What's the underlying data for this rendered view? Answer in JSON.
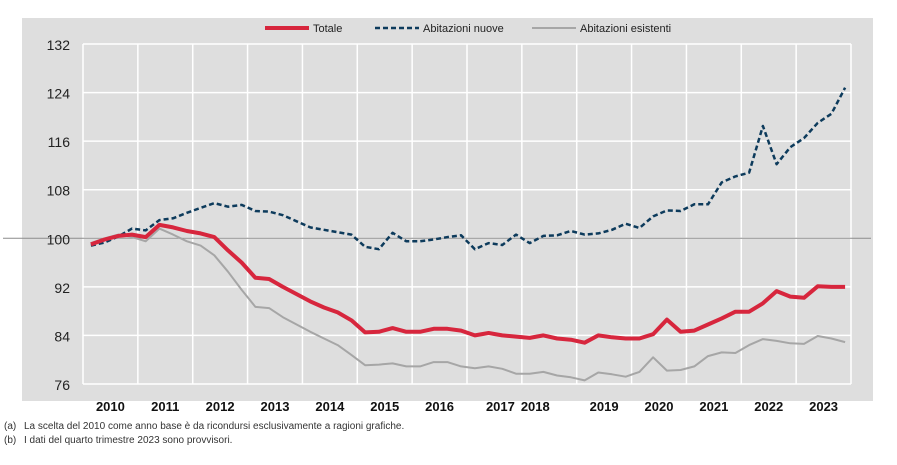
{
  "chart_data": {
    "type": "line",
    "xlabel": "",
    "ylabel": "",
    "ylim": [
      76,
      132
    ],
    "yticks": [
      76,
      84,
      92,
      100,
      108,
      116,
      124,
      132
    ],
    "reference_line": 100,
    "grid": true,
    "legend_position": "top-center",
    "x_tick_labels": [
      "2010",
      "2011",
      "2012",
      "2013",
      "2014",
      "2015",
      "2016",
      "2017",
      "2018",
      "2019",
      "2020",
      "2021",
      "2022",
      "2023"
    ],
    "frequency": "quarterly",
    "series": [
      {
        "name": "Totale",
        "color": "#d7263d",
        "style": "solid-thick",
        "values": [
          99,
          99.8,
          100.4,
          100.6,
          100.2,
          102.2,
          101.8,
          101.2,
          100.8,
          100.2,
          98,
          96,
          93.5,
          93.3,
          92,
          90.8,
          89.6,
          88.6,
          87.8,
          86.5,
          84.5,
          84.6,
          85.2,
          84.6,
          84.6,
          85.1,
          85.1,
          84.8,
          84,
          84.4,
          84,
          83.8,
          83.6,
          84,
          83.5,
          83.3,
          82.8,
          84,
          83.7,
          83.5,
          83.5,
          84.2,
          86.6,
          84.6,
          84.8,
          85.8,
          86.8,
          87.9,
          87.9,
          89.3,
          91.3,
          90.4,
          90.2,
          92.1,
          92.0,
          92.0
        ]
      },
      {
        "name": "Abitazioni nuove",
        "color": "#0d3b5c",
        "style": "dashed",
        "values": [
          98.8,
          99.3,
          100.3,
          101.6,
          101.3,
          103,
          103.3,
          104.2,
          105,
          105.8,
          105.2,
          105.5,
          104.5,
          104.4,
          103.8,
          102.8,
          101.8,
          101.4,
          101,
          100.6,
          98.6,
          98.2,
          100.9,
          99.5,
          99.5,
          99.8,
          100.2,
          100.5,
          98.2,
          99.2,
          98.9,
          100.6,
          99.2,
          100.4,
          100.5,
          101.2,
          100.6,
          100.8,
          101.4,
          102.4,
          101.7,
          103.6,
          104.6,
          104.5,
          105.6,
          105.6,
          109.2,
          110.2,
          110.8,
          118.5,
          112.2,
          115,
          116.5,
          119,
          120.5,
          124.8
        ]
      },
      {
        "name": "Abitazioni esistenti",
        "color": "#a6a6a6",
        "style": "solid",
        "values": [
          99.2,
          100,
          100.6,
          100.2,
          99.5,
          101.6,
          100.6,
          99.5,
          98.8,
          97.2,
          94.5,
          91.5,
          88.7,
          88.5,
          87,
          85.8,
          84.6,
          83.5,
          82.4,
          80.8,
          79.1,
          79.2,
          79.4,
          78.9,
          78.9,
          79.6,
          79.6,
          78.9,
          78.6,
          78.9,
          78.5,
          77.7,
          77.7,
          78,
          77.4,
          77.1,
          76.6,
          77.9,
          77.6,
          77.2,
          78,
          80.4,
          78.2,
          78.3,
          78.9,
          80.6,
          81.2,
          81.1,
          82.4,
          83.4,
          83.1,
          82.7,
          82.6,
          83.9,
          83.5,
          82.9
        ]
      }
    ]
  },
  "footnotes": [
    {
      "key": "(a)",
      "text": "La scelta del 2010 come anno base è da ricondursi esclusivamente a ragioni grafiche."
    },
    {
      "key": "(b)",
      "text": "I dati del quarto trimestre 2023 sono provvisori."
    }
  ]
}
